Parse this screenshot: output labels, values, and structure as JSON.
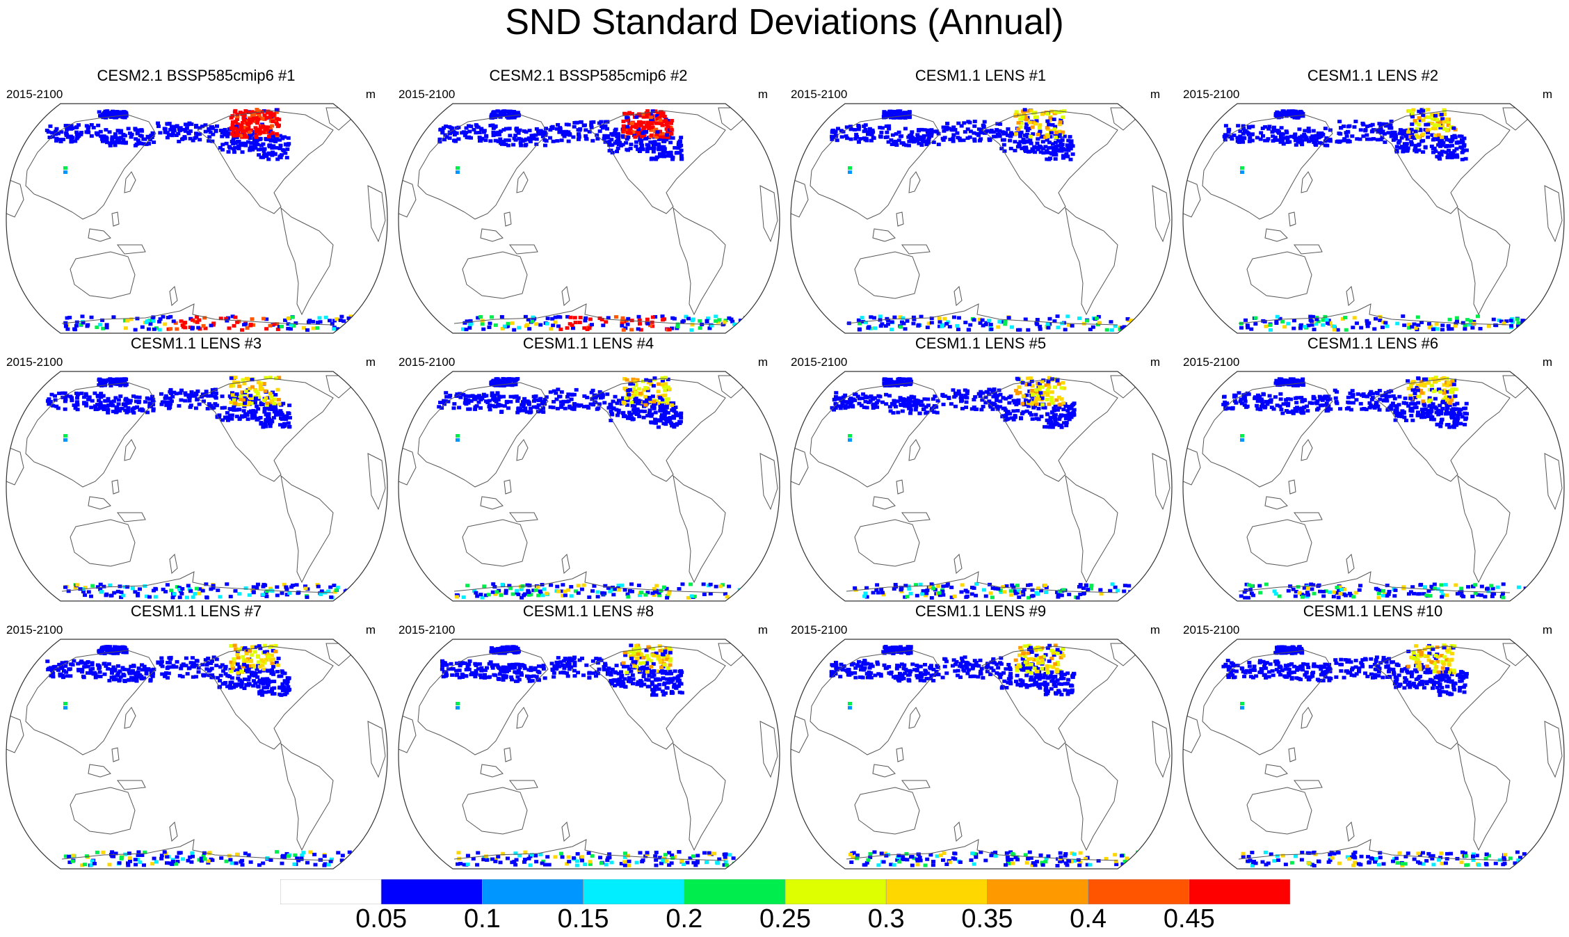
{
  "title": "SND Standard Deviations (Annual)",
  "period_label": "2015-2100",
  "units": "m",
  "panels": [
    {
      "title": "CESM2.1 BSSP585cmip6 #1",
      "intensity": "high"
    },
    {
      "title": "CESM2.1 BSSP585cmip6 #2",
      "intensity": "high"
    },
    {
      "title": "CESM1.1 LENS #1",
      "intensity": "medium"
    },
    {
      "title": "CESM1.1 LENS #2",
      "intensity": "medium"
    },
    {
      "title": "CESM1.1 LENS #3",
      "intensity": "medium"
    },
    {
      "title": "CESM1.1 LENS #4",
      "intensity": "medium"
    },
    {
      "title": "CESM1.1 LENS #5",
      "intensity": "medium"
    },
    {
      "title": "CESM1.1 LENS #6",
      "intensity": "medium"
    },
    {
      "title": "CESM1.1 LENS #7",
      "intensity": "medium"
    },
    {
      "title": "CESM1.1 LENS #8",
      "intensity": "medium"
    },
    {
      "title": "CESM1.1 LENS #9",
      "intensity": "medium"
    },
    {
      "title": "CESM1.1 LENS #10",
      "intensity": "medium"
    }
  ],
  "colorbar": {
    "labels": [
      "0.05",
      "0.1",
      "0.15",
      "0.2",
      "0.25",
      "0.3",
      "0.35",
      "0.4",
      "0.45"
    ],
    "colors": [
      "#ffffff",
      "#0000ff",
      "#0096ff",
      "#00eeff",
      "#00ee4d",
      "#ddff00",
      "#ffd700",
      "#ff9900",
      "#ff5500",
      "#ff0000"
    ]
  }
}
